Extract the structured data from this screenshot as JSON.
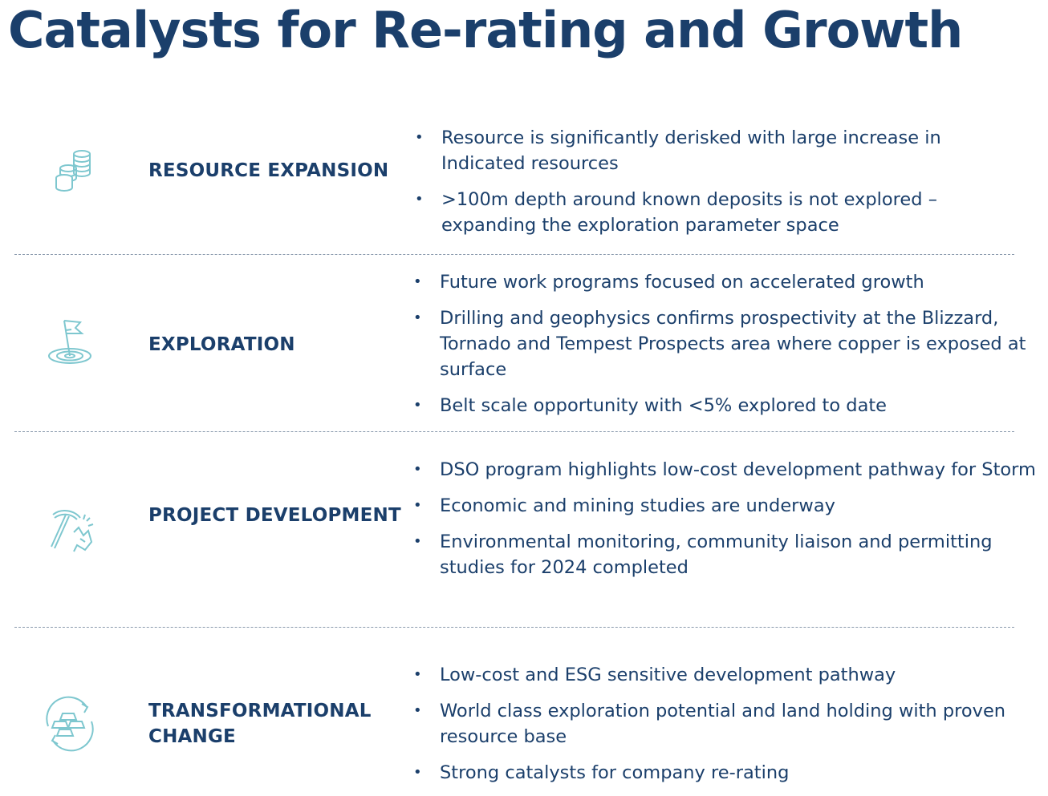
{
  "title": "Catalysts for Re-rating and Growth",
  "colors": {
    "heading": "#1b3f6b",
    "icon": "#7ec7cf",
    "divider": "#8a9aad"
  },
  "rows": [
    {
      "icon": "coins-stack-icon",
      "label": "RESOURCE EXPANSION",
      "bullets": [
        "Resource is significantly derisked with large increase in Indicated resources",
        ">100m depth around known deposits is not explored – expanding the exploration parameter space"
      ]
    },
    {
      "icon": "flag-target-icon",
      "label": "EXPLORATION",
      "bullets": [
        "Future work programs focused on accelerated growth",
        "Drilling and geophysics confirms prospectivity at the Blizzard, Tornado and Tempest Prospects area where copper is exposed at surface",
        "Belt scale opportunity with <5% explored to date"
      ]
    },
    {
      "icon": "pickaxe-icon",
      "label": "PROJECT DEVELOPMENT",
      "bullets": [
        "DSO program highlights low-cost development pathway for Storm",
        "Economic and mining studies are underway",
        "Environmental monitoring, community liaison and permitting studies for 2024 completed"
      ]
    },
    {
      "icon": "gold-bars-cycle-icon",
      "label": "TRANSFORMATIONAL CHANGE",
      "bullets": [
        "Low-cost and ESG sensitive development pathway",
        "World class exploration potential and land holding with proven resource base",
        "Strong catalysts for company re-rating"
      ]
    }
  ]
}
